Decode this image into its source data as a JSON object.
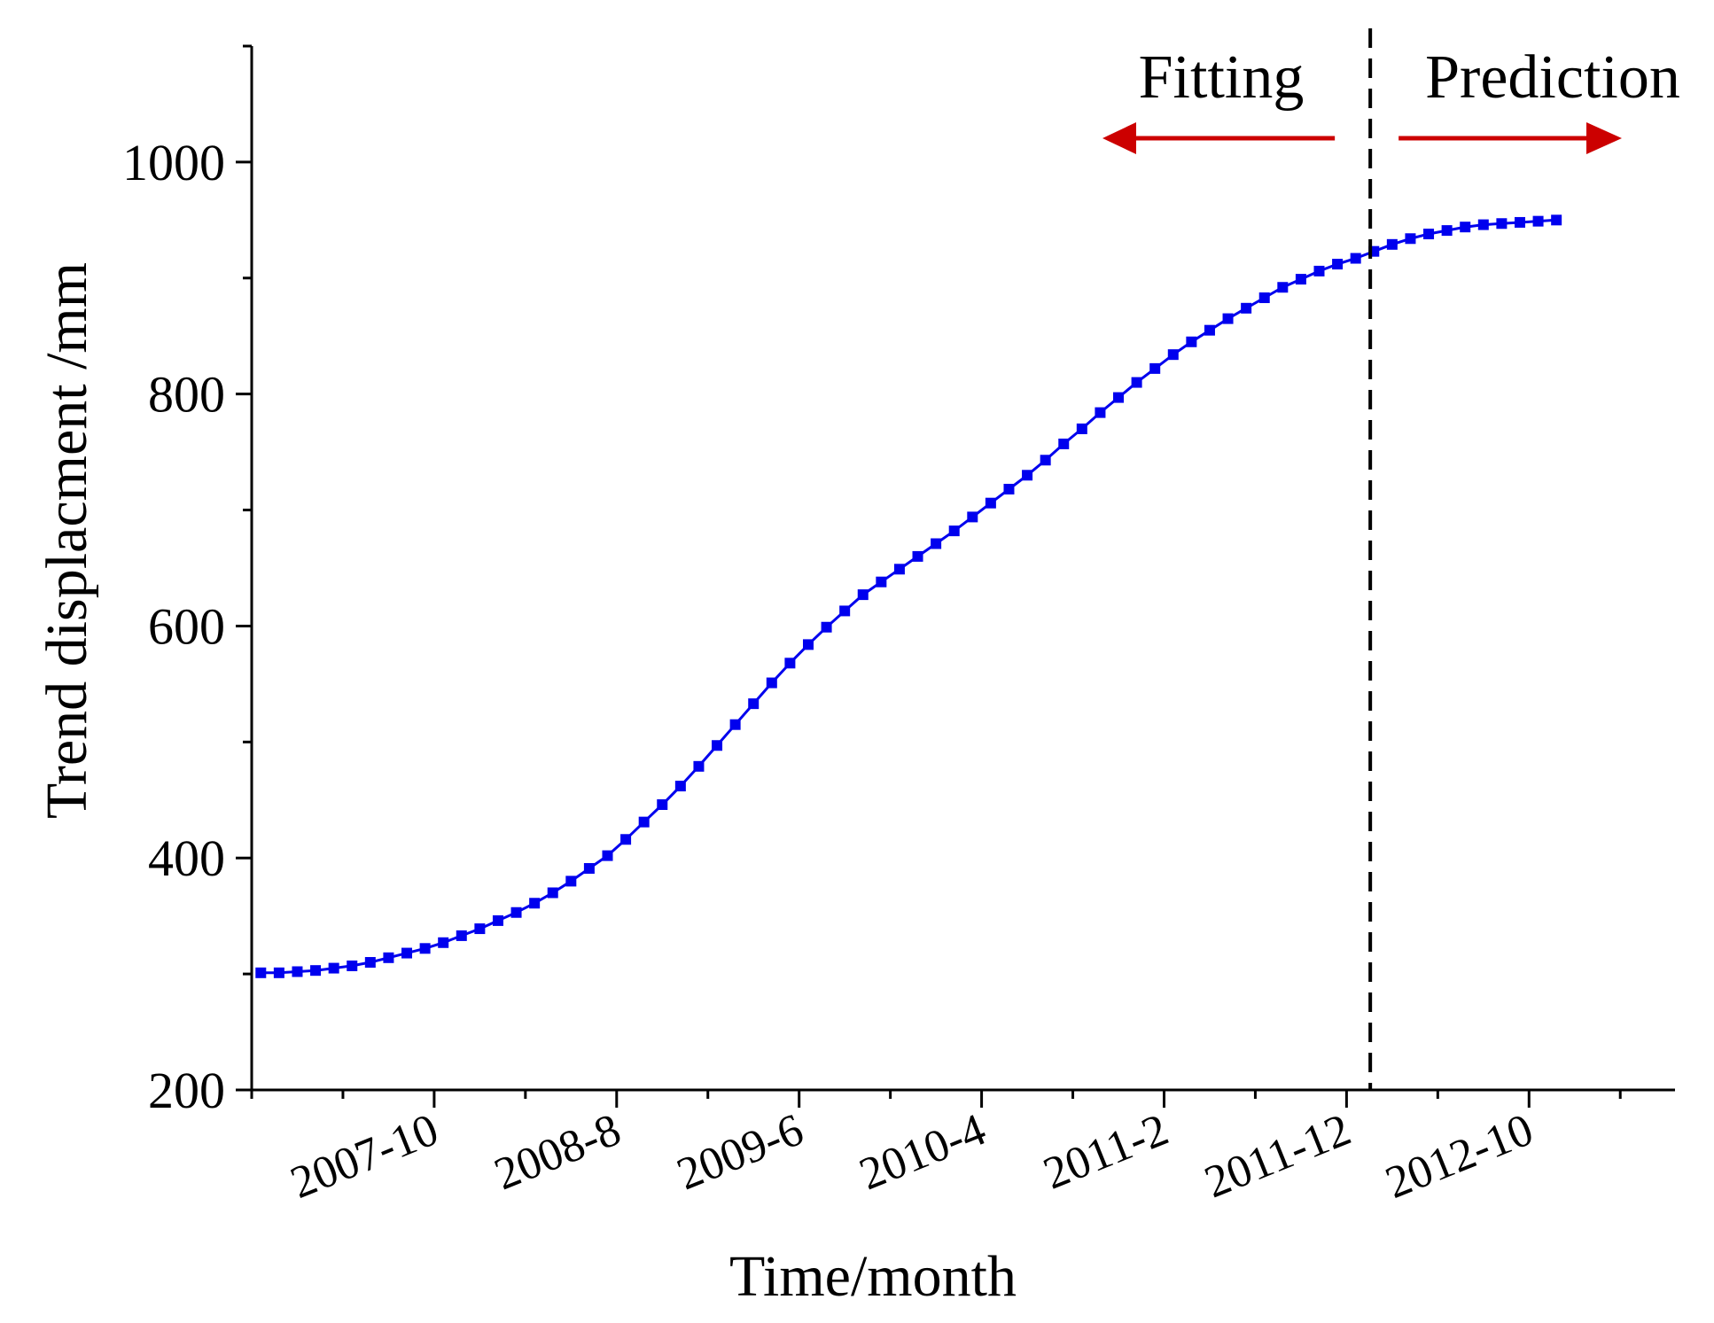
{
  "chart_data": {
    "type": "scatter",
    "title": "",
    "xlabel": "Time/month",
    "ylabel": "Trend displacment  /mm",
    "ylim": [
      200,
      1100
    ],
    "yticks": [
      200,
      400,
      600,
      800,
      1000
    ],
    "xlim_month_index": [
      0,
      78
    ],
    "x_tick_labels": [
      {
        "label": "2007-10",
        "month_index": 10
      },
      {
        "label": "2008-8",
        "month_index": 20
      },
      {
        "label": "2009-6",
        "month_index": 30
      },
      {
        "label": "2010-4",
        "month_index": 40
      },
      {
        "label": "2011-2",
        "month_index": 50
      },
      {
        "label": "2011-12",
        "month_index": 60
      },
      {
        "label": "2012-10",
        "month_index": 70
      }
    ],
    "minor_tick_month_indices": [
      0,
      5,
      15,
      25,
      35,
      45,
      55,
      65,
      75
    ],
    "fit_predict_split_month_index": 61.3,
    "annotations": {
      "left": "Fitting",
      "right": "Prediction"
    },
    "series": [
      {
        "name": "Trend displacement",
        "color": "#0000ee",
        "marker": "square",
        "x_start_month_index": 0.5,
        "x_step_months": 1,
        "values": [
          301,
          301,
          302,
          303,
          305,
          307,
          310,
          314,
          318,
          322,
          327,
          333,
          339,
          346,
          353,
          361,
          370,
          380,
          391,
          402,
          416,
          431,
          446,
          462,
          479,
          497,
          515,
          533,
          551,
          568,
          584,
          599,
          613,
          627,
          638,
          649,
          660,
          671,
          682,
          694,
          706,
          718,
          730,
          743,
          757,
          770,
          784,
          797,
          810,
          822,
          834,
          845,
          855,
          865,
          874,
          883,
          892,
          899,
          906,
          912,
          917,
          923,
          929,
          934,
          938,
          941,
          944,
          946,
          947,
          948,
          949,
          950
        ]
      }
    ],
    "colors": {
      "series": "#0000ee",
      "arrow": "#cc0000",
      "axis": "#000000"
    }
  }
}
